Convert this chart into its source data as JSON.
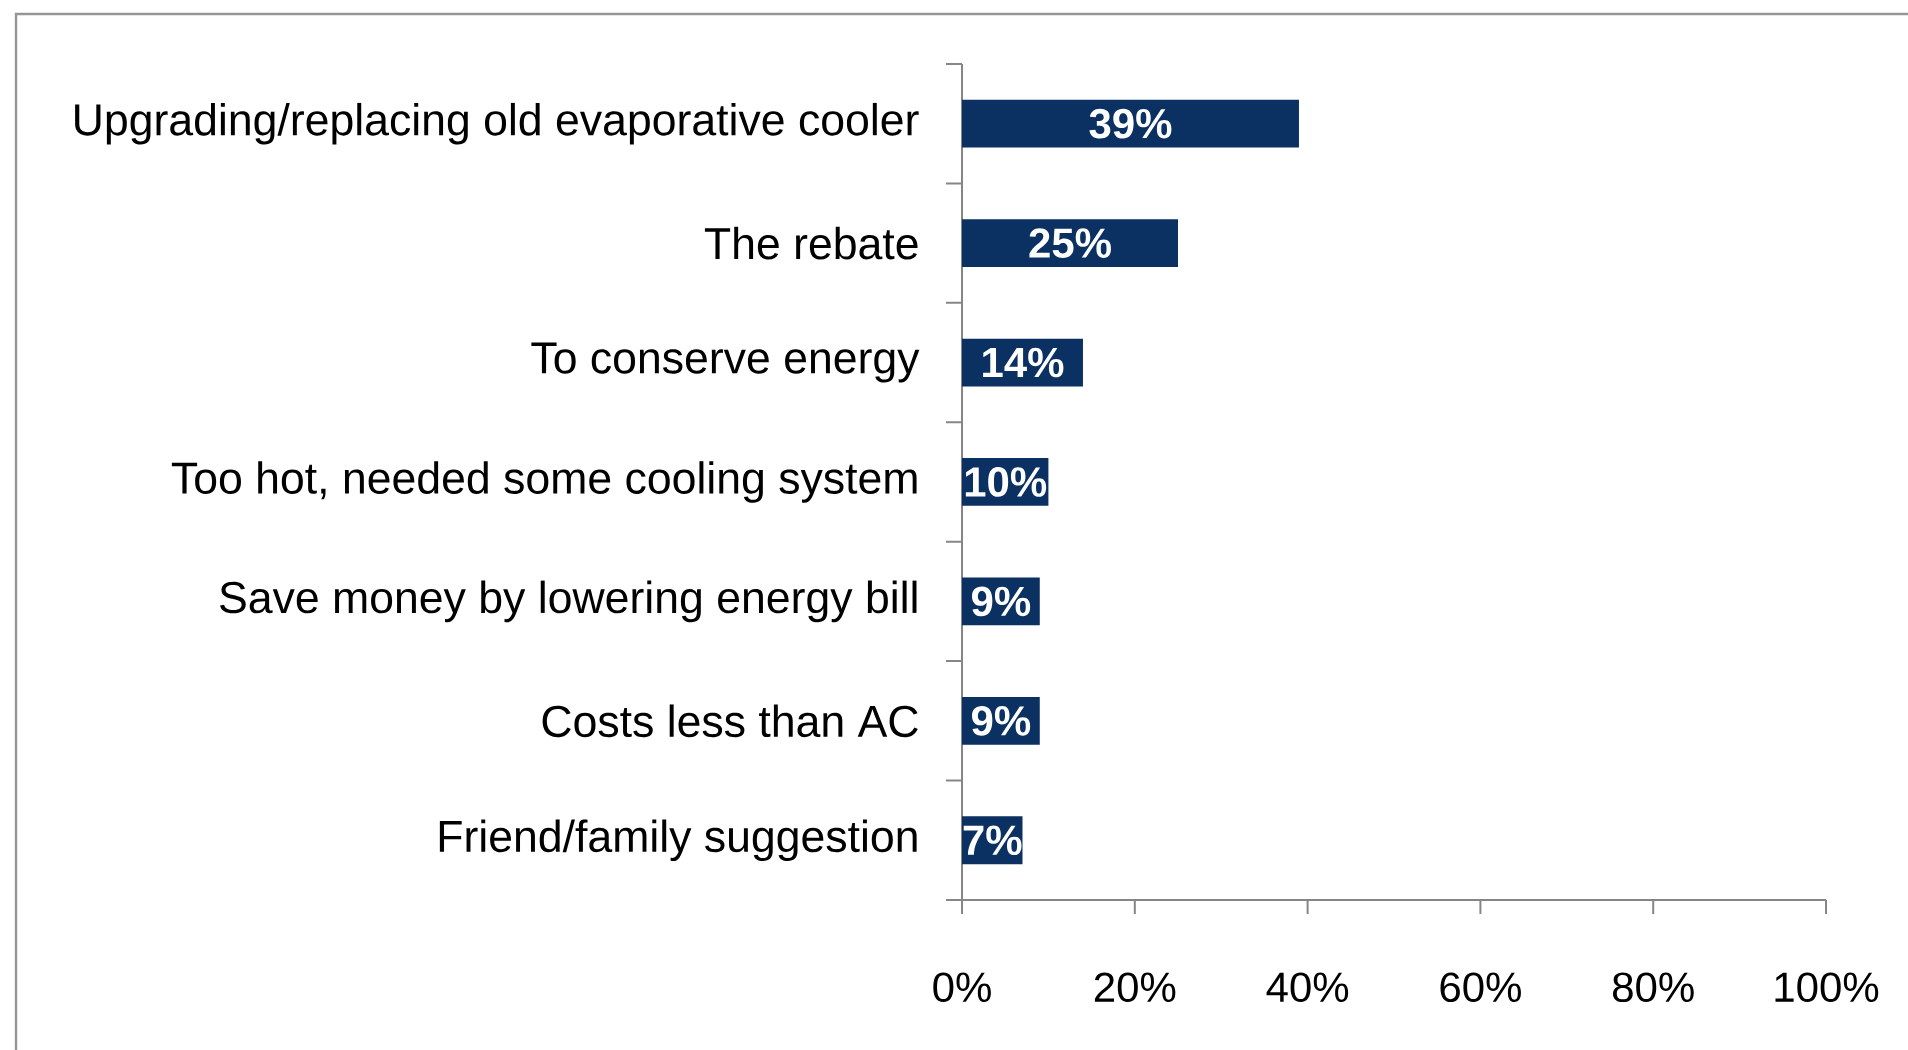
{
  "chart_data": {
    "type": "bar",
    "orientation": "horizontal",
    "categories": [
      "Upgrading/replacing old evaporative cooler",
      "The rebate",
      "To conserve energy",
      "Too hot, needed some cooling system",
      "Save money by lowering energy bill",
      "Costs less than AC",
      "Friend/family suggestion"
    ],
    "values": [
      39,
      25,
      14,
      10,
      9,
      9,
      7
    ],
    "value_labels": [
      "39%",
      "25%",
      "14%",
      "10%",
      "9%",
      "9%",
      "7%"
    ],
    "color": "#0a3161",
    "xlim": [
      0,
      100
    ],
    "xticks": [
      {
        "value": 0,
        "label": "0%"
      },
      {
        "value": 20,
        "label": "20%"
      },
      {
        "value": 40,
        "label": "40%"
      },
      {
        "value": 60,
        "label": "60%"
      },
      {
        "value": 80,
        "label": "80%"
      },
      {
        "value": 100,
        "label": "100%"
      }
    ]
  }
}
